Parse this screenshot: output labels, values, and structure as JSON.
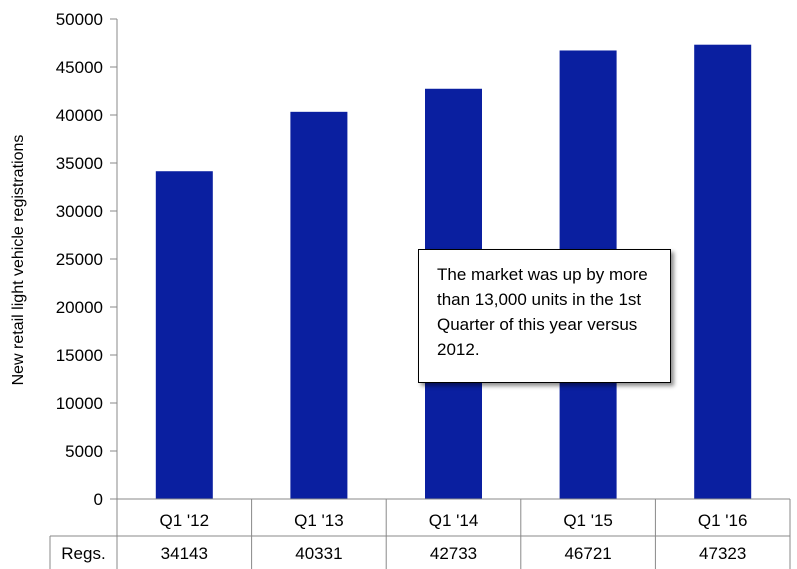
{
  "chart_data": {
    "type": "bar",
    "title": "",
    "xlabel": "",
    "ylabel": "New retail light vehicle registrations",
    "categories": [
      "Q1 '12",
      "Q1 '13",
      "Q1 '14",
      "Q1 '15",
      "Q1 '16"
    ],
    "values": [
      34143,
      40331,
      42733,
      46721,
      47323
    ],
    "ylim": [
      0,
      50000
    ],
    "yticks": [
      0,
      5000,
      10000,
      15000,
      20000,
      25000,
      30000,
      35000,
      40000,
      45000,
      50000
    ],
    "grid": false,
    "legend": "none",
    "bar_color": "#0a1fa0",
    "data_table": {
      "row_label": "Regs.",
      "values": [
        "34143",
        "40331",
        "42733",
        "46721",
        "47323"
      ]
    },
    "annotation": "The market was up by more than 13,000 units in the 1st Quarter of this year versus 2012."
  }
}
